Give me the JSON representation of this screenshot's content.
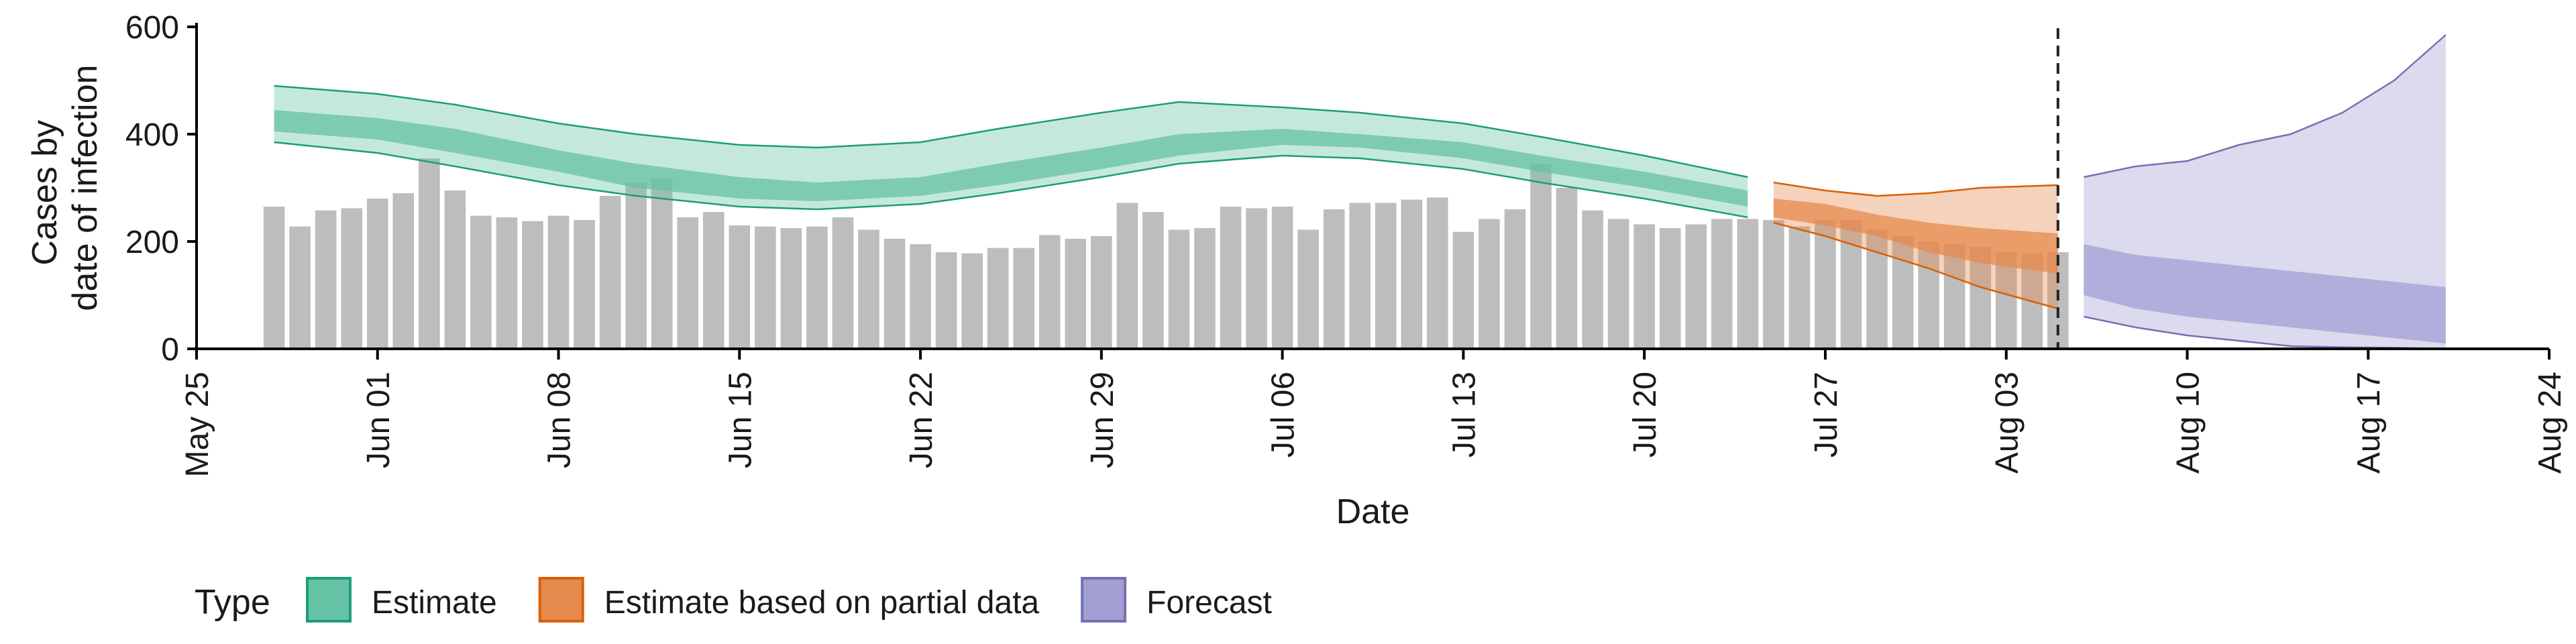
{
  "chart_data": {
    "type": "bar",
    "title": "",
    "xlabel": "Date",
    "ylabel": [
      "Cases by",
      "date of infection"
    ],
    "xlim": [
      "2020-05-25",
      "2020-08-24"
    ],
    "ylim": [
      0,
      600
    ],
    "x_ticks": [
      {
        "date": "2020-05-25",
        "label": "May 25"
      },
      {
        "date": "2020-06-01",
        "label": "Jun 01"
      },
      {
        "date": "2020-06-08",
        "label": "Jun 08"
      },
      {
        "date": "2020-06-15",
        "label": "Jun 15"
      },
      {
        "date": "2020-06-22",
        "label": "Jun 22"
      },
      {
        "date": "2020-06-29",
        "label": "Jun 29"
      },
      {
        "date": "2020-07-06",
        "label": "Jul 06"
      },
      {
        "date": "2020-07-13",
        "label": "Jul 13"
      },
      {
        "date": "2020-07-20",
        "label": "Jul 20"
      },
      {
        "date": "2020-07-27",
        "label": "Jul 27"
      },
      {
        "date": "2020-08-03",
        "label": "Aug 03"
      },
      {
        "date": "2020-08-10",
        "label": "Aug 10"
      },
      {
        "date": "2020-08-17",
        "label": "Aug 17"
      },
      {
        "date": "2020-08-24",
        "label": "Aug 24"
      }
    ],
    "y_ticks": [
      0,
      200,
      400,
      600
    ],
    "grid": false,
    "forecast_start_line": "2020-08-05",
    "bars": {
      "start_date": "2020-05-28",
      "color": "#bdbdbd",
      "values": [
        265,
        228,
        258,
        262,
        280,
        290,
        355,
        295,
        248,
        245,
        238,
        248,
        240,
        285,
        310,
        318,
        245,
        255,
        230,
        228,
        225,
        228,
        245,
        222,
        205,
        195,
        180,
        178,
        188,
        188,
        212,
        205,
        210,
        272,
        255,
        222,
        225,
        265,
        262,
        265,
        222,
        260,
        272,
        272,
        278,
        282,
        218,
        242,
        260,
        345,
        300,
        258,
        242,
        232,
        225,
        232,
        242,
        242,
        240,
        228,
        240,
        240,
        222,
        210,
        200,
        195,
        190,
        180,
        178,
        180
      ]
    },
    "series": [
      {
        "name": "Estimate",
        "color": "#1b9e77",
        "fill": "#66c2a5",
        "dates": [
          "2020-05-28",
          "2020-06-01",
          "2020-06-04",
          "2020-06-08",
          "2020-06-11",
          "2020-06-15",
          "2020-06-18",
          "2020-06-22",
          "2020-06-25",
          "2020-06-29",
          "2020-07-02",
          "2020-07-06",
          "2020-07-09",
          "2020-07-13",
          "2020-07-16",
          "2020-07-20",
          "2020-07-24"
        ],
        "outer_lower": [
          385,
          365,
          340,
          305,
          285,
          265,
          260,
          270,
          290,
          320,
          345,
          360,
          355,
          335,
          310,
          280,
          245
        ],
        "outer_upper": [
          490,
          475,
          455,
          420,
          400,
          380,
          375,
          385,
          410,
          440,
          460,
          450,
          440,
          420,
          395,
          360,
          320
        ],
        "inner_lower": [
          405,
          390,
          365,
          330,
          300,
          280,
          275,
          285,
          305,
          335,
          360,
          380,
          375,
          355,
          330,
          300,
          265
        ],
        "inner_upper": [
          445,
          430,
          410,
          370,
          345,
          320,
          310,
          320,
          345,
          375,
          400,
          410,
          400,
          385,
          360,
          330,
          295
        ]
      },
      {
        "name": "Estimate based on partial data",
        "color": "#d95f02",
        "fill": "#e6894d",
        "dates": [
          "2020-07-25",
          "2020-07-27",
          "2020-07-29",
          "2020-07-31",
          "2020-08-02",
          "2020-08-05"
        ],
        "outer_lower": [
          235,
          210,
          180,
          150,
          115,
          75
        ],
        "outer_upper": [
          310,
          295,
          285,
          290,
          300,
          305
        ],
        "inner_lower": [
          245,
          230,
          210,
          180,
          160,
          140
        ],
        "inner_upper": [
          280,
          270,
          250,
          235,
          225,
          215
        ]
      },
      {
        "name": "Forecast",
        "color": "#7570b3",
        "fill": "#a19fd3",
        "dates": [
          "2020-08-06",
          "2020-08-08",
          "2020-08-10",
          "2020-08-12",
          "2020-08-14",
          "2020-08-16",
          "2020-08-18",
          "2020-08-20"
        ],
        "outer_lower": [
          60,
          40,
          25,
          15,
          5,
          3,
          2,
          0
        ],
        "outer_upper": [
          320,
          340,
          350,
          380,
          400,
          440,
          500,
          585
        ],
        "inner_lower": [
          100,
          75,
          60,
          50,
          40,
          30,
          20,
          10
        ],
        "inner_upper": [
          195,
          175,
          165,
          155,
          145,
          135,
          125,
          115
        ]
      }
    ],
    "legend": {
      "title": "Type",
      "position": "bottom-left",
      "items": [
        "Estimate",
        "Estimate based on partial data",
        "Forecast"
      ]
    }
  }
}
